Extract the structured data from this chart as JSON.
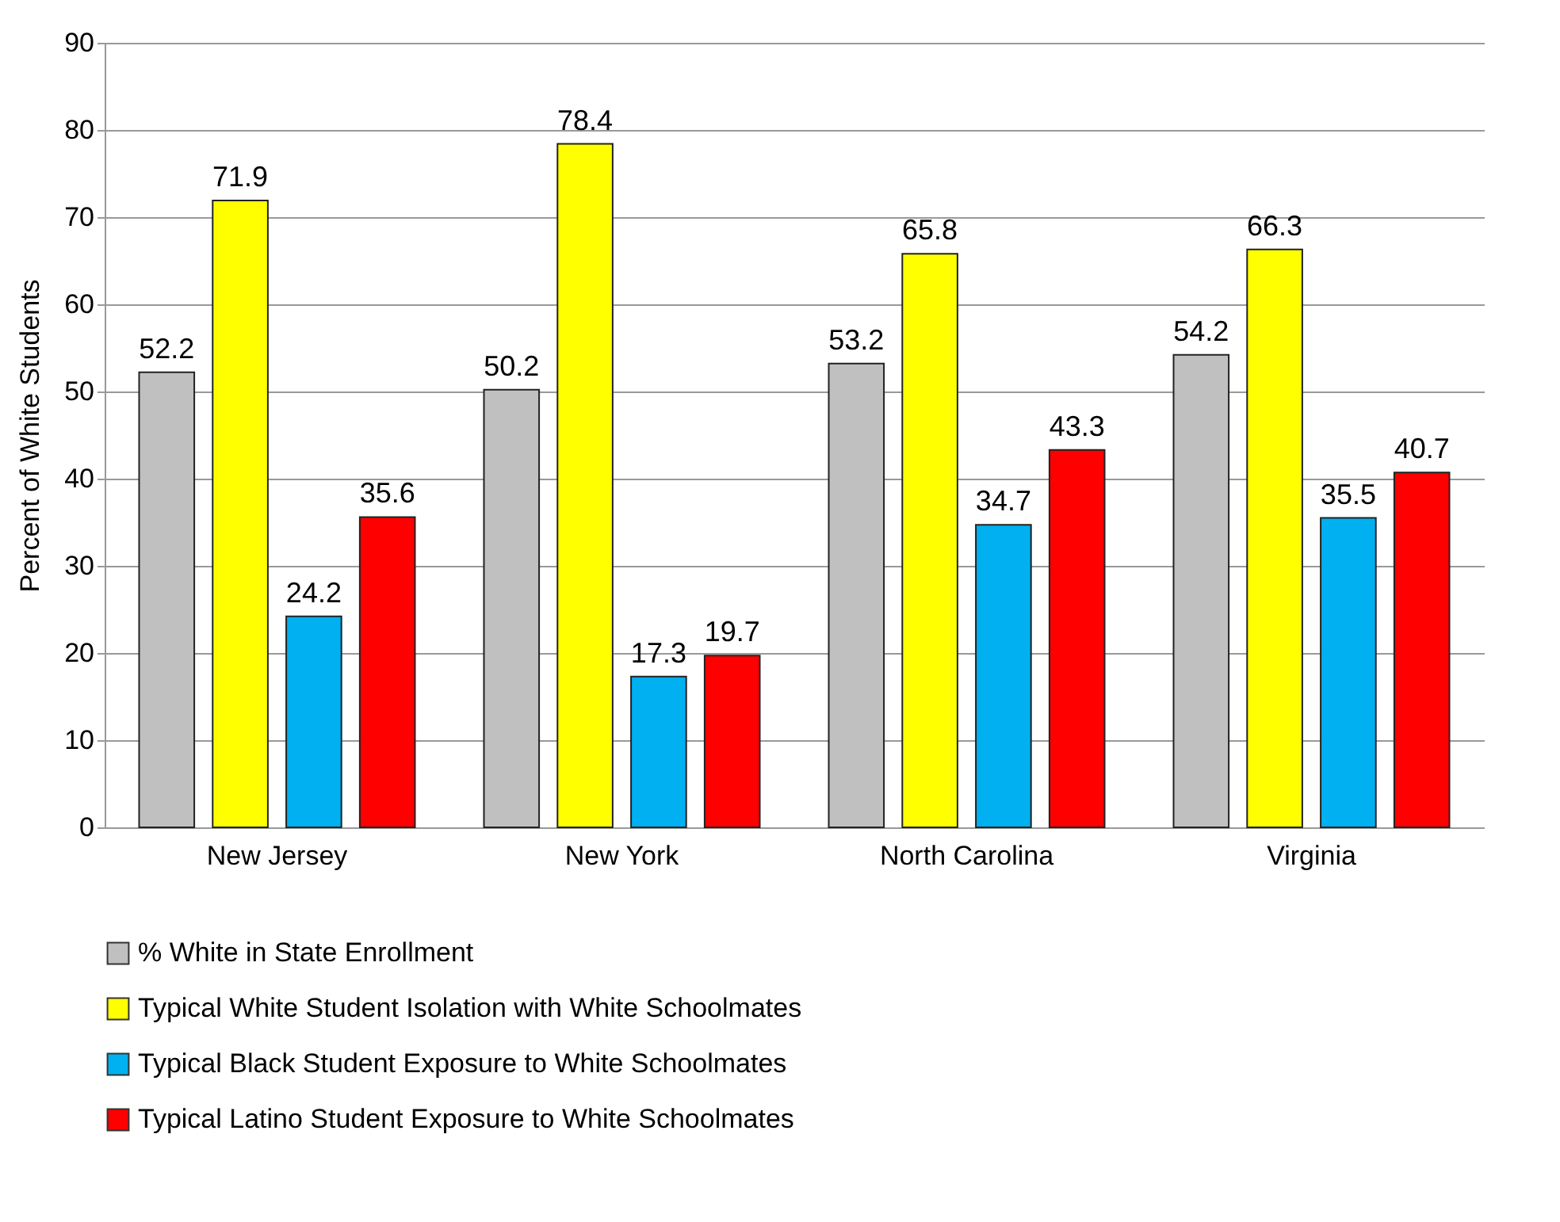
{
  "chart_data": {
    "type": "bar",
    "ylabel": "Percent of White Students",
    "categories": [
      "New Jersey",
      "New York",
      "North Carolina",
      "Virginia"
    ],
    "series": [
      {
        "name": "% White in State Enrollment",
        "color": "#c0c0c0",
        "values": [
          52.2,
          50.2,
          53.2,
          54.2
        ]
      },
      {
        "name": "Typical White Student Isolation with White Schoolmates",
        "color": "#ffff00",
        "values": [
          71.9,
          78.4,
          65.8,
          66.3
        ]
      },
      {
        "name": "Typical Black Student Exposure to White Schoolmates",
        "color": "#00b0f0",
        "values": [
          24.2,
          17.3,
          34.7,
          35.5
        ]
      },
      {
        "name": "Typical Latino Student Exposure to White Schoolmates",
        "color": "#ff0000",
        "values": [
          35.6,
          19.7,
          43.3,
          40.7
        ]
      }
    ],
    "ylim": [
      0,
      90
    ],
    "yticks": [
      0,
      10,
      20,
      30,
      40,
      50,
      60,
      70,
      80,
      90
    ],
    "grid": "y",
    "legend": "bottom",
    "data_labels": true
  }
}
